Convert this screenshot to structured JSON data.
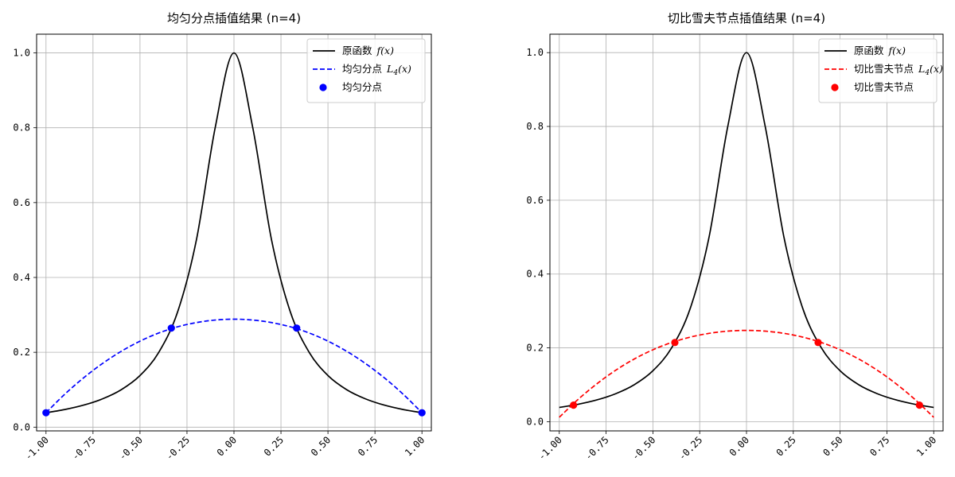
{
  "chart_data": [
    {
      "type": "line",
      "title": "均匀分点插值结果 (n=4)",
      "xlim": [
        -1.05,
        1.05
      ],
      "ylim": [
        -0.01,
        1.05
      ],
      "x_ticks": [
        -1.0,
        -0.75,
        -0.5,
        -0.25,
        0.0,
        0.25,
        0.5,
        0.75,
        1.0
      ],
      "x_tick_labels": [
        "-1.00",
        "-0.75",
        "-0.50",
        "-0.25",
        "0.00",
        "0.25",
        "0.50",
        "0.75",
        "1.00"
      ],
      "y_ticks": [
        0.0,
        0.2,
        0.4,
        0.6,
        0.8,
        1.0
      ],
      "y_tick_labels": [
        "0.0",
        "0.2",
        "0.4",
        "0.6",
        "0.8",
        "1.0"
      ],
      "grid": true,
      "legend_position": "top-right",
      "series": [
        {
          "name": "原函数",
          "math": "f(x)",
          "style": "solid",
          "color": "#000000",
          "x": [
            -1.0,
            -0.9,
            -0.8,
            -0.7,
            -0.6,
            -0.5,
            -0.4,
            -0.3,
            -0.2,
            -0.1,
            0.0,
            0.1,
            0.2,
            0.3,
            0.4,
            0.5,
            0.6,
            0.7,
            0.8,
            0.9,
            1.0
          ],
          "y": [
            0.0385,
            0.0471,
            0.0588,
            0.0755,
            0.1,
            0.1379,
            0.2,
            0.3077,
            0.5,
            0.8,
            1.0,
            0.8,
            0.5,
            0.3077,
            0.2,
            0.1379,
            0.1,
            0.0755,
            0.0588,
            0.0471,
            0.0385
          ]
        },
        {
          "name": "均匀分点",
          "math": "L_4(x)",
          "style": "dashed",
          "color": "#0000ff",
          "x": [
            -1.0,
            -0.9,
            -0.8,
            -0.7,
            -0.6,
            -0.5,
            -0.4,
            -0.3,
            -0.2,
            -0.1,
            0.0,
            0.1,
            0.2,
            0.3,
            0.4,
            0.5,
            0.6,
            0.7,
            0.8,
            0.9,
            1.0
          ],
          "y": [
            0.0385,
            0.0881,
            0.1318,
            0.1699,
            0.2026,
            0.2298,
            0.2516,
            0.2681,
            0.2794,
            0.2862,
            0.2885,
            0.2862,
            0.2794,
            0.2681,
            0.2516,
            0.2298,
            0.2026,
            0.1699,
            0.1318,
            0.0881,
            0.0385
          ]
        },
        {
          "name": "均匀分点",
          "style": "markers",
          "color": "#0000ff",
          "x": [
            -1.0,
            -0.3333,
            0.3333,
            1.0
          ],
          "y": [
            0.0385,
            0.2647,
            0.2647,
            0.0385
          ]
        }
      ]
    },
    {
      "type": "line",
      "title": "切比雪夫节点插值结果 (n=4)",
      "xlim": [
        -1.05,
        1.05
      ],
      "ylim": [
        -0.025,
        1.05
      ],
      "x_ticks": [
        -1.0,
        -0.75,
        -0.5,
        -0.25,
        0.0,
        0.25,
        0.5,
        0.75,
        1.0
      ],
      "x_tick_labels": [
        "-1.00",
        "-0.75",
        "-0.50",
        "-0.25",
        "0.00",
        "0.25",
        "0.50",
        "0.75",
        "1.00"
      ],
      "y_ticks": [
        0.0,
        0.2,
        0.4,
        0.6,
        0.8,
        1.0
      ],
      "y_tick_labels": [
        "0.0",
        "0.2",
        "0.4",
        "0.6",
        "0.8",
        "1.0"
      ],
      "grid": true,
      "legend_position": "top-right",
      "series": [
        {
          "name": "原函数",
          "math": "f(x)",
          "style": "solid",
          "color": "#000000",
          "x": [
            -1.0,
            -0.9,
            -0.8,
            -0.7,
            -0.6,
            -0.5,
            -0.4,
            -0.3,
            -0.2,
            -0.1,
            0.0,
            0.1,
            0.2,
            0.3,
            0.4,
            0.5,
            0.6,
            0.7,
            0.8,
            0.9,
            1.0
          ],
          "y": [
            0.0385,
            0.0471,
            0.0588,
            0.0755,
            0.1,
            0.1379,
            0.2,
            0.3077,
            0.5,
            0.8,
            1.0,
            0.8,
            0.5,
            0.3077,
            0.2,
            0.1379,
            0.1,
            0.0755,
            0.0588,
            0.0471,
            0.0385
          ]
        },
        {
          "name": "切比雪夫节点",
          "math": "L_4(x)",
          "style": "dashed",
          "color": "#ff0000",
          "x": [
            -1.0,
            -0.9,
            -0.8,
            -0.7,
            -0.6,
            -0.5,
            -0.4,
            -0.3,
            -0.2,
            -0.1,
            0.0,
            0.1,
            0.2,
            0.3,
            0.4,
            0.5,
            0.6,
            0.7,
            0.8,
            0.9,
            1.0
          ],
          "y": [
            0.0118,
            0.0601,
            0.1023,
            0.1389,
            0.1696,
            0.1948,
            0.2145,
            0.2292,
            0.2393,
            0.2453,
            0.2473,
            0.2453,
            0.2393,
            0.2292,
            0.2145,
            0.1948,
            0.1696,
            0.1389,
            0.1023,
            0.0601,
            0.0118
          ]
        },
        {
          "name": "切比雪夫节点",
          "style": "markers",
          "color": "#ff0000",
          "x": [
            -0.9239,
            -0.3827,
            0.3827,
            0.9239
          ],
          "y": [
            0.0448,
            0.2145,
            0.2145,
            0.0448
          ]
        }
      ]
    }
  ]
}
